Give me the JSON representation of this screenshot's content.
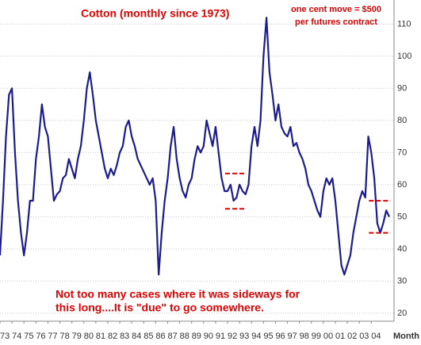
{
  "chart_data": {
    "type": "line",
    "title": "Cotton (monthly since 1973)",
    "note": [
      "one cent move = $500",
      "per futures contract"
    ],
    "annotation": [
      "Not too many cases where it was sideways for",
      "this long....It is \"due\" to go somewhere."
    ],
    "xlabel": "Month",
    "color": "#1c1c8e",
    "grid": true,
    "x": [
      1973,
      1973.25,
      1973.5,
      1973.75,
      1974,
      1974.25,
      1974.5,
      1974.75,
      1975,
      1975.25,
      1975.5,
      1975.75,
      1976,
      1976.25,
      1976.5,
      1976.75,
      1977,
      1977.25,
      1977.5,
      1977.75,
      1978,
      1978.25,
      1978.5,
      1978.75,
      1979,
      1979.25,
      1979.5,
      1979.75,
      1980,
      1980.25,
      1980.5,
      1980.75,
      1981,
      1981.25,
      1981.5,
      1981.75,
      1982,
      1982.25,
      1982.5,
      1982.75,
      1983,
      1983.25,
      1983.5,
      1983.75,
      1984,
      1984.25,
      1984.5,
      1984.75,
      1985,
      1985.25,
      1985.5,
      1985.75,
      1986,
      1986.25,
      1986.5,
      1986.75,
      1987,
      1987.25,
      1987.5,
      1987.75,
      1988,
      1988.25,
      1988.5,
      1988.75,
      1989,
      1989.25,
      1989.5,
      1989.75,
      1990,
      1990.25,
      1990.5,
      1990.75,
      1991,
      1991.25,
      1991.5,
      1991.75,
      1992,
      1992.25,
      1992.5,
      1992.75,
      1993,
      1993.25,
      1993.5,
      1993.75,
      1994,
      1994.25,
      1994.5,
      1994.75,
      1995,
      1995.25,
      1995.5,
      1995.75,
      1996,
      1996.25,
      1996.5,
      1996.75,
      1997,
      1997.25,
      1997.5,
      1997.75,
      1998,
      1998.25,
      1998.5,
      1998.75,
      1999,
      1999.25,
      1999.5,
      1999.75,
      2000,
      2000.25,
      2000.5,
      2000.75,
      2001,
      2001.25,
      2001.5,
      2001.75,
      2002,
      2002.25,
      2002.5,
      2002.75,
      2003,
      2003.25,
      2003.5,
      2003.75,
      2004,
      2004.25,
      2004.5,
      2004.75,
      2005,
      2005.25,
      2005.5
    ],
    "values": [
      38,
      55,
      75,
      88,
      90,
      70,
      55,
      45,
      38,
      45,
      55,
      55,
      68,
      75,
      85,
      78,
      75,
      65,
      55,
      57,
      58,
      62,
      63,
      68,
      65,
      62,
      68,
      72,
      80,
      90,
      95,
      88,
      80,
      75,
      70,
      65,
      62,
      65,
      63,
      66,
      70,
      72,
      78,
      80,
      75,
      72,
      68,
      66,
      64,
      62,
      60,
      62,
      55,
      32,
      45,
      55,
      62,
      72,
      78,
      68,
      62,
      58,
      56,
      60,
      62,
      68,
      72,
      70,
      72,
      80,
      76,
      72,
      78,
      70,
      62,
      58,
      58,
      60,
      55,
      56,
      60,
      58,
      57,
      60,
      72,
      78,
      72,
      80,
      100,
      112,
      95,
      88,
      80,
      85,
      78,
      76,
      75,
      78,
      72,
      73,
      70,
      68,
      65,
      60,
      58,
      55,
      52,
      50,
      58,
      62,
      60,
      62,
      55,
      45,
      35,
      32,
      35,
      38,
      45,
      50,
      55,
      58,
      56,
      75,
      70,
      62,
      48,
      45,
      48,
      52,
      50
    ],
    "ranges": [
      {
        "x": [
          1991.8,
          1993.5
        ],
        "y": 63.5
      },
      {
        "x": [
          1991.8,
          1993.5
        ],
        "y": 52.5
      },
      {
        "x": [
          2003.8,
          2005.6
        ],
        "y": 55
      },
      {
        "x": [
          2003.8,
          2005.6
        ],
        "y": 45
      }
    ],
    "range_color": "#e00000",
    "xlim": [
      1973,
      2005.9
    ],
    "ylim": [
      17.5,
      117.5
    ],
    "yticks": [
      20,
      30,
      40,
      50,
      60,
      70,
      80,
      90,
      100,
      110
    ],
    "xticks": [
      {
        "value": 1973,
        "label": "73"
      },
      {
        "value": 1974,
        "label": "74"
      },
      {
        "value": 1975,
        "label": "75"
      },
      {
        "value": 1976,
        "label": "76"
      },
      {
        "value": 1977,
        "label": "77"
      },
      {
        "value": 1978,
        "label": "78"
      },
      {
        "value": 1979,
        "label": "79"
      },
      {
        "value": 1980,
        "label": "80"
      },
      {
        "value": 1981,
        "label": "81"
      },
      {
        "value": 1982,
        "label": "82"
      },
      {
        "value": 1983,
        "label": "83"
      },
      {
        "value": 1984,
        "label": "84"
      },
      {
        "value": 1985,
        "label": "85"
      },
      {
        "value": 1986,
        "label": "86"
      },
      {
        "value": 1987,
        "label": "87"
      },
      {
        "value": 1988,
        "label": "88"
      },
      {
        "value": 1989,
        "label": "89"
      },
      {
        "value": 1990,
        "label": "90"
      },
      {
        "value": 1991,
        "label": "91"
      },
      {
        "value": 1992,
        "label": "92"
      },
      {
        "value": 1993,
        "label": "93"
      },
      {
        "value": 1994,
        "label": "94"
      },
      {
        "value": 1995,
        "label": "95"
      },
      {
        "value": 1996,
        "label": "96"
      },
      {
        "value": 1997,
        "label": "97"
      },
      {
        "value": 1998,
        "label": "98"
      },
      {
        "value": 1999,
        "label": "99"
      },
      {
        "value": 2000,
        "label": "00"
      },
      {
        "value": 2001,
        "label": "01"
      },
      {
        "value": 2002,
        "label": "02"
      },
      {
        "value": 2003,
        "label": "03"
      },
      {
        "value": 2004,
        "label": "04"
      }
    ]
  }
}
